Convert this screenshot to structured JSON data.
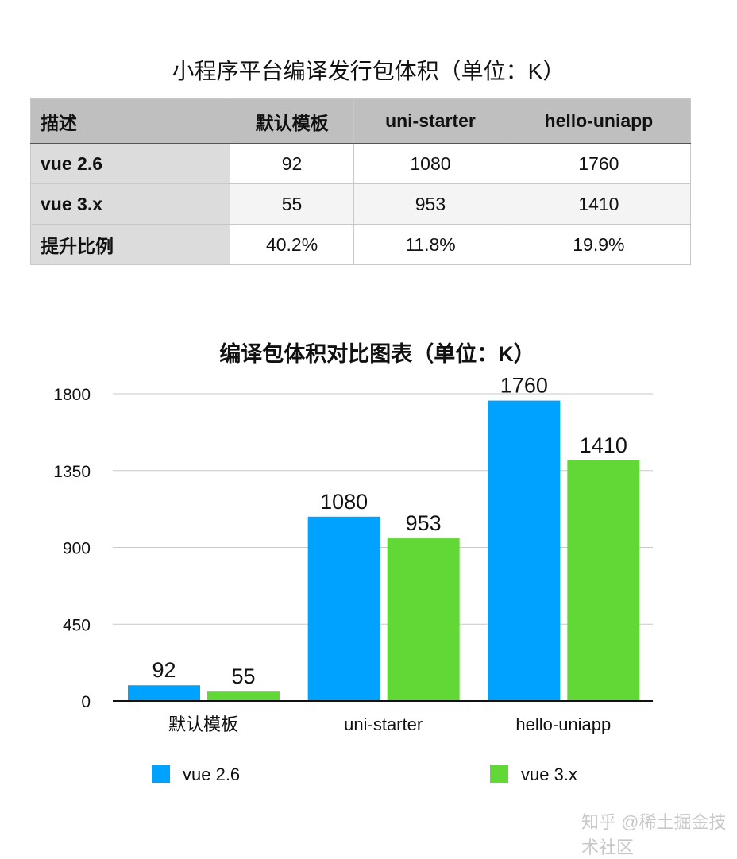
{
  "table": {
    "title": "小程序平台编译发行包体积（单位：K）",
    "headers": [
      "描述",
      "默认模板",
      "uni-starter",
      "hello-uniapp"
    ],
    "rows": [
      [
        "vue 2.6",
        "92",
        "1080",
        "1760"
      ],
      [
        "vue 3.x",
        "55",
        "953",
        "1410"
      ],
      [
        "提升比例",
        "40.2%",
        "11.8%",
        "19.9%"
      ]
    ]
  },
  "chart_data": {
    "type": "bar",
    "title": "编译包体积对比图表（单位：K）",
    "categories": [
      "默认模板",
      "uni-starter",
      "hello-uniapp"
    ],
    "series": [
      {
        "name": "vue 2.6",
        "values": [
          92,
          1080,
          1760
        ],
        "color": "#00a2ff"
      },
      {
        "name": "vue 3.x",
        "values": [
          55,
          953,
          1410
        ],
        "color": "#61d836"
      }
    ],
    "yticks": [
      "0",
      "450",
      "900",
      "1350",
      "1800"
    ],
    "ylim": [
      0,
      1800
    ],
    "grid": true,
    "legend": "bottom"
  },
  "watermark": "知乎 @稀土掘金技术社区"
}
